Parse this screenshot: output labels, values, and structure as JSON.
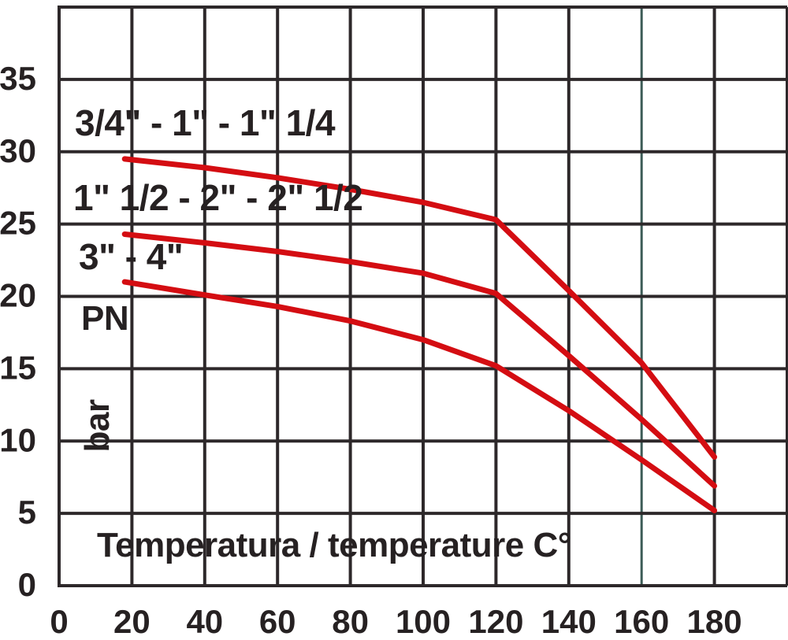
{
  "chart_data": {
    "type": "line",
    "title": "",
    "xlabel": "Temperatura / temperature C°",
    "pn_label": "PN",
    "unit_label": "bar",
    "xlim": [
      0,
      200
    ],
    "ylim": [
      0,
      40
    ],
    "grid_step_x": 20,
    "grid_step_y": 5,
    "grid_on": true,
    "highlight_gridline_x": 160,
    "x_tick_labels": [
      0,
      20,
      40,
      60,
      80,
      100,
      120,
      140,
      160,
      180
    ],
    "y_tick_labels": [
      0,
      5,
      10,
      15,
      20,
      25,
      30,
      35
    ],
    "series": [
      {
        "name": "3/4\" - 1\" - 1\" 1/4",
        "points": [
          [
            18,
            29.5
          ],
          [
            40,
            28.9
          ],
          [
            60,
            28.2
          ],
          [
            80,
            27.4
          ],
          [
            100,
            26.5
          ],
          [
            120,
            25.3
          ],
          [
            140,
            20.4
          ],
          [
            160,
            15.4
          ],
          [
            180,
            8.9
          ]
        ]
      },
      {
        "name": "1\" 1/2 - 2\" - 2\" 1/2",
        "points": [
          [
            18,
            24.3
          ],
          [
            40,
            23.7
          ],
          [
            60,
            23.1
          ],
          [
            80,
            22.4
          ],
          [
            100,
            21.6
          ],
          [
            120,
            20.2
          ],
          [
            140,
            15.9
          ],
          [
            160,
            11.5
          ],
          [
            180,
            6.9
          ]
        ]
      },
      {
        "name": "3\" - 4\"",
        "points": [
          [
            18,
            21.0
          ],
          [
            40,
            20.1
          ],
          [
            60,
            19.3
          ],
          [
            80,
            18.3
          ],
          [
            100,
            17.0
          ],
          [
            120,
            15.2
          ],
          [
            140,
            12.1
          ],
          [
            160,
            8.7
          ],
          [
            180,
            5.2
          ]
        ]
      }
    ],
    "colors": {
      "line": "#d40d12",
      "grid": "#2d282a",
      "highlight_grid": "#3d5c57",
      "text": "#262122",
      "background": "#ffffff"
    }
  }
}
